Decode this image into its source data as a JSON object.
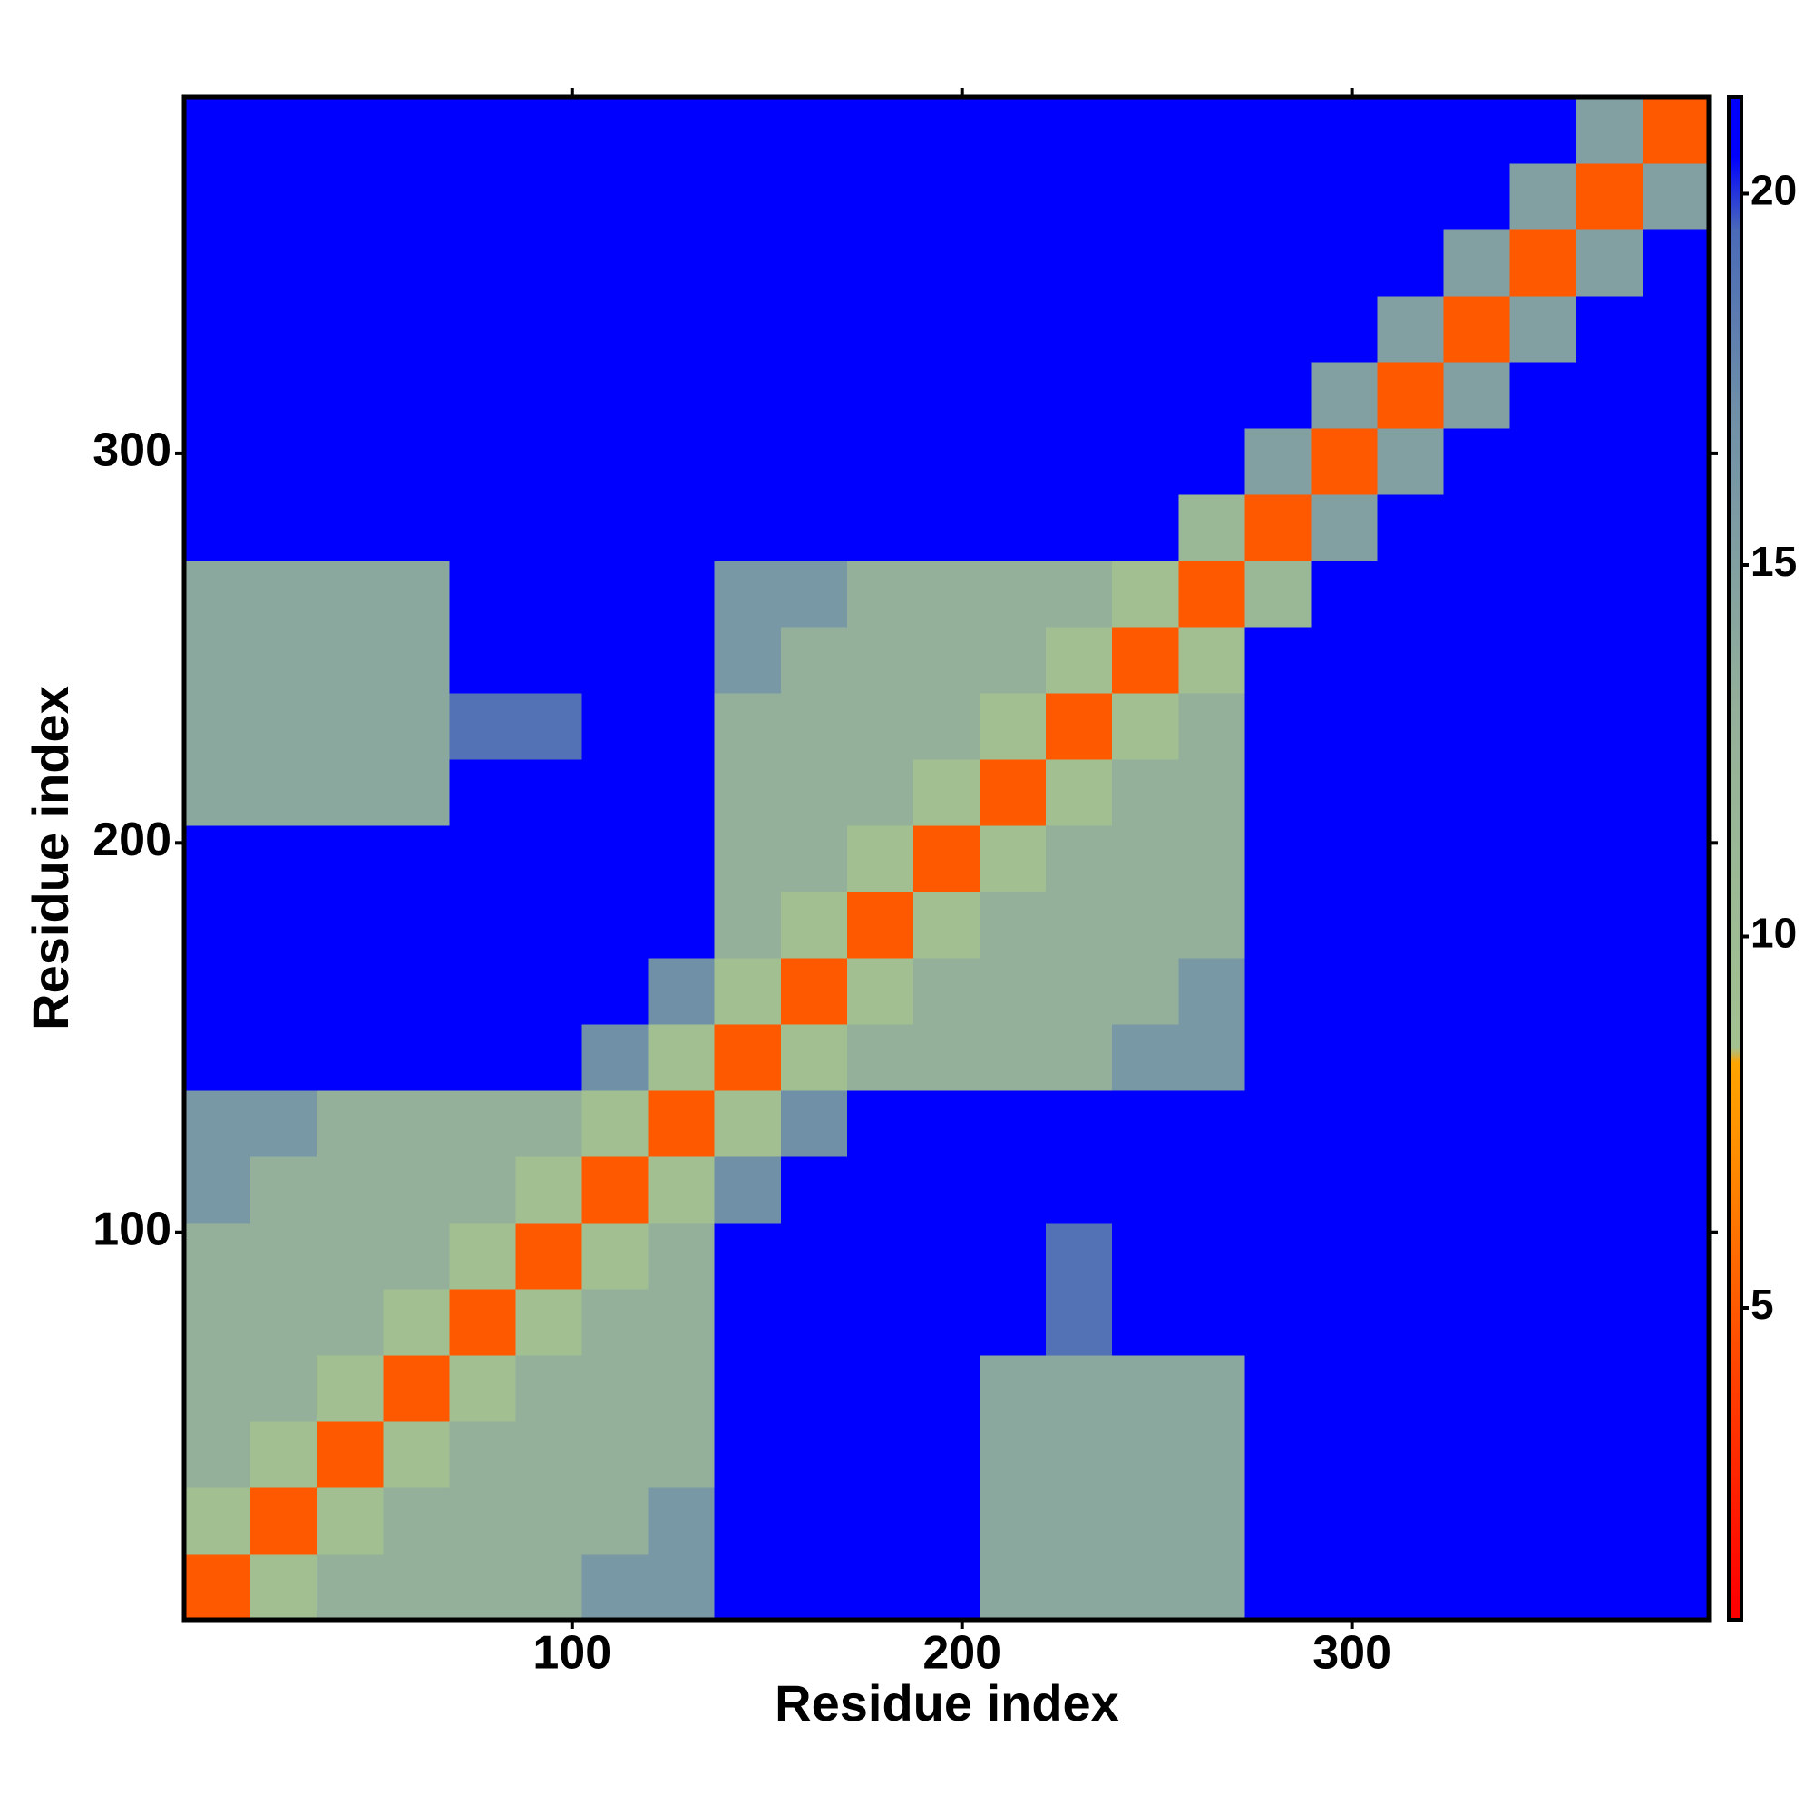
{
  "chart_data": {
    "type": "heatmap",
    "x_label": "Residue index",
    "y_label": "Residue index",
    "bins": [
      0.5,
      17.5,
      34.5,
      51.5,
      68.5,
      85.5,
      102.5,
      119.5,
      136.5,
      153.5,
      170.5,
      187.5,
      204.5,
      221.5,
      238.5,
      255.5,
      272.5,
      289.5,
      306.5,
      323.5,
      340.5,
      357.5,
      374.5,
      391.5
    ],
    "xlim": [
      0.5,
      391.5
    ],
    "ylim": [
      0.5,
      391.5
    ],
    "xticks": [
      100,
      200,
      300
    ],
    "yticks": [
      100,
      200,
      300
    ],
    "colorbar_lim": [
      0.8,
      21.3
    ],
    "colorbar_ticks": [
      5,
      10,
      15,
      20
    ],
    "colorscale": [
      {
        "value": 1,
        "color": "#ff0000"
      },
      {
        "value": 4,
        "color": "#ff4000"
      },
      {
        "value": 7,
        "color": "#ff8c00"
      },
      {
        "value": 8.3,
        "color": "#ffa500"
      },
      {
        "value": 8.5,
        "color": "#a3c190"
      },
      {
        "value": 13,
        "color": "#94b09a"
      },
      {
        "value": 17,
        "color": "#7090a8"
      },
      {
        "value": 19.5,
        "color": "#4a6ab8"
      },
      {
        "value": 20.5,
        "color": "#0000ff"
      },
      {
        "value": 21.3,
        "color": "#0000ff"
      }
    ],
    "z": [
      [
        5,
        9,
        13,
        13,
        13,
        13,
        16,
        16,
        21,
        21,
        21,
        21,
        14,
        14,
        14,
        14,
        21,
        21,
        21,
        21,
        21,
        21,
        21
      ],
      [
        9,
        5,
        9,
        13,
        13,
        13,
        13,
        16,
        21,
        21,
        21,
        21,
        14,
        14,
        14,
        14,
        21,
        21,
        21,
        21,
        21,
        21,
        21
      ],
      [
        13,
        9,
        5,
        9,
        13,
        13,
        13,
        13,
        21,
        21,
        21,
        21,
        14,
        14,
        14,
        14,
        21,
        21,
        21,
        21,
        21,
        21,
        21
      ],
      [
        13,
        13,
        9,
        5,
        9,
        13,
        13,
        13,
        21,
        21,
        21,
        21,
        14,
        14,
        14,
        14,
        21,
        21,
        21,
        21,
        21,
        21,
        21
      ],
      [
        13,
        13,
        13,
        9,
        5,
        9,
        13,
        13,
        21,
        21,
        21,
        21,
        21,
        19,
        21,
        21,
        21,
        21,
        21,
        21,
        21,
        21,
        21
      ],
      [
        13,
        13,
        13,
        13,
        9,
        5,
        9,
        13,
        21,
        21,
        21,
        21,
        21,
        19,
        21,
        21,
        21,
        21,
        21,
        21,
        21,
        21,
        21
      ],
      [
        16,
        13,
        13,
        13,
        13,
        9,
        5,
        9,
        17,
        21,
        21,
        21,
        21,
        21,
        21,
        21,
        21,
        21,
        21,
        21,
        21,
        21,
        21
      ],
      [
        16,
        16,
        13,
        13,
        13,
        13,
        9,
        5,
        9,
        17,
        21,
        21,
        21,
        21,
        21,
        21,
        21,
        21,
        21,
        21,
        21,
        21,
        21
      ],
      [
        21,
        21,
        21,
        21,
        21,
        21,
        17,
        9,
        5,
        9,
        13,
        13,
        13,
        13,
        16,
        16,
        21,
        21,
        21,
        21,
        21,
        21,
        21
      ],
      [
        21,
        21,
        21,
        21,
        21,
        21,
        21,
        17,
        9,
        5,
        9,
        13,
        13,
        13,
        13,
        16,
        21,
        21,
        21,
        21,
        21,
        21,
        21
      ],
      [
        21,
        21,
        21,
        21,
        21,
        21,
        21,
        21,
        13,
        9,
        5,
        9,
        13,
        13,
        13,
        13,
        21,
        21,
        21,
        21,
        21,
        21,
        21
      ],
      [
        21,
        21,
        21,
        21,
        21,
        21,
        21,
        21,
        13,
        13,
        9,
        5,
        9,
        13,
        13,
        13,
        21,
        21,
        21,
        21,
        21,
        21,
        21
      ],
      [
        14,
        14,
        14,
        14,
        21,
        21,
        21,
        21,
        13,
        13,
        13,
        9,
        5,
        9,
        13,
        13,
        21,
        21,
        21,
        21,
        21,
        21,
        21
      ],
      [
        14,
        14,
        14,
        14,
        19,
        19,
        21,
        21,
        13,
        13,
        13,
        13,
        9,
        5,
        9,
        13,
        21,
        21,
        21,
        21,
        21,
        21,
        21
      ],
      [
        14,
        14,
        14,
        14,
        21,
        21,
        21,
        21,
        16,
        13,
        13,
        13,
        13,
        9,
        5,
        9,
        21,
        21,
        21,
        21,
        21,
        21,
        21
      ],
      [
        14,
        14,
        14,
        14,
        21,
        21,
        21,
        21,
        16,
        16,
        13,
        13,
        13,
        13,
        9,
        5,
        11,
        21,
        21,
        21,
        21,
        21,
        21
      ],
      [
        21,
        21,
        21,
        21,
        21,
        21,
        21,
        21,
        21,
        21,
        21,
        21,
        21,
        21,
        21,
        11,
        5,
        15,
        21,
        21,
        21,
        21,
        21
      ],
      [
        21,
        21,
        21,
        21,
        21,
        21,
        21,
        21,
        21,
        21,
        21,
        21,
        21,
        21,
        21,
        21,
        15,
        5,
        15,
        21,
        21,
        21,
        21
      ],
      [
        21,
        21,
        21,
        21,
        21,
        21,
        21,
        21,
        21,
        21,
        21,
        21,
        21,
        21,
        21,
        21,
        21,
        15,
        5,
        15,
        21,
        21,
        21
      ],
      [
        21,
        21,
        21,
        21,
        21,
        21,
        21,
        21,
        21,
        21,
        21,
        21,
        21,
        21,
        21,
        21,
        21,
        21,
        15,
        5,
        15,
        21,
        21
      ],
      [
        21,
        21,
        21,
        21,
        21,
        21,
        21,
        21,
        21,
        21,
        21,
        21,
        21,
        21,
        21,
        21,
        21,
        21,
        21,
        15,
        5,
        15,
        21
      ],
      [
        21,
        21,
        21,
        21,
        21,
        21,
        21,
        21,
        21,
        21,
        21,
        21,
        21,
        21,
        21,
        21,
        21,
        21,
        21,
        21,
        15,
        5,
        15
      ],
      [
        21,
        21,
        21,
        21,
        21,
        21,
        21,
        21,
        21,
        21,
        21,
        21,
        21,
        21,
        21,
        21,
        21,
        21,
        21,
        21,
        21,
        15,
        5
      ]
    ]
  }
}
